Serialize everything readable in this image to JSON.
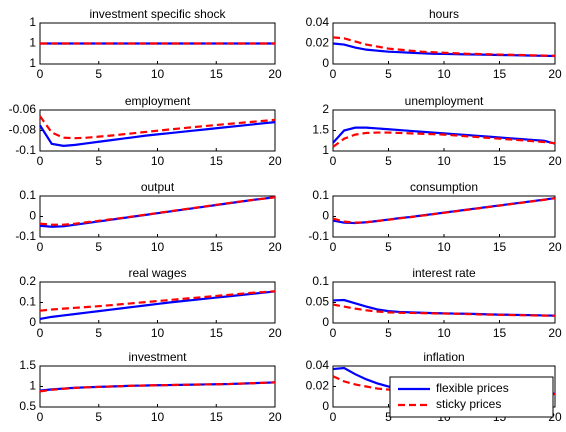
{
  "chart_data": [
    {
      "type": "line",
      "title": "investment specific shock",
      "x": [
        0,
        1,
        2,
        3,
        4,
        5,
        6,
        7,
        8,
        9,
        10,
        11,
        12,
        13,
        14,
        15,
        16,
        17,
        18,
        19,
        20
      ],
      "xlim": [
        0,
        20
      ],
      "xticks": [
        0,
        5,
        10,
        15,
        20
      ],
      "ylim": [
        0.9999,
        1.0001
      ],
      "yticks": [
        {
          "value": 0.9999,
          "label": "1"
        },
        1,
        {
          "value": 1.0001,
          "label": "1"
        }
      ],
      "series": [
        {
          "color": "#0000ff",
          "linestyle": "solid",
          "values": [
            1,
            1,
            1,
            1,
            1,
            1,
            1,
            1,
            1,
            1,
            1,
            1,
            1,
            1,
            1,
            1,
            1,
            1,
            1,
            1,
            1
          ]
        },
        {
          "color": "#ff0000",
          "linestyle": "dashed",
          "values": [
            1,
            1,
            1,
            1,
            1,
            1,
            1,
            1,
            1,
            1,
            1,
            1,
            1,
            1,
            1,
            1,
            1,
            1,
            1,
            1,
            1
          ]
        }
      ]
    },
    {
      "type": "line",
      "title": "hours",
      "x": [
        0,
        1,
        2,
        3,
        4,
        5,
        6,
        7,
        8,
        9,
        10,
        11,
        12,
        13,
        14,
        15,
        16,
        17,
        18,
        19,
        20
      ],
      "xlim": [
        0,
        20
      ],
      "xticks": [
        0,
        5,
        10,
        15,
        20
      ],
      "ylim": [
        0,
        0.04
      ],
      "yticks": [
        0,
        0.02,
        0.04
      ],
      "series": [
        {
          "color": "#0000ff",
          "linestyle": "solid",
          "values": [
            0.02,
            0.019,
            0.016,
            0.014,
            0.013,
            0.012,
            0.0115,
            0.011,
            0.0105,
            0.01,
            0.0098,
            0.0096,
            0.0094,
            0.0092,
            0.009,
            0.0088,
            0.0086,
            0.0084,
            0.0082,
            0.008,
            0.0078
          ]
        },
        {
          "color": "#ff0000",
          "linestyle": "dashed",
          "values": [
            0.026,
            0.025,
            0.022,
            0.019,
            0.017,
            0.015,
            0.014,
            0.013,
            0.012,
            0.0115,
            0.011,
            0.0105,
            0.01,
            0.0098,
            0.0095,
            0.0092,
            0.009,
            0.0088,
            0.0085,
            0.0082,
            0.008
          ]
        }
      ]
    },
    {
      "type": "line",
      "title": "employment",
      "x": [
        0,
        1,
        2,
        3,
        4,
        5,
        6,
        7,
        8,
        9,
        10,
        11,
        12,
        13,
        14,
        15,
        16,
        17,
        18,
        19,
        20
      ],
      "xlim": [
        0,
        20
      ],
      "xticks": [
        0,
        5,
        10,
        15,
        20
      ],
      "ylim": [
        -0.1,
        -0.06
      ],
      "yticks": [
        -0.1,
        -0.08,
        -0.06
      ],
      "series": [
        {
          "color": "#0000ff",
          "linestyle": "solid",
          "values": [
            -0.075,
            -0.093,
            -0.095,
            -0.094,
            -0.0925,
            -0.091,
            -0.0895,
            -0.088,
            -0.0865,
            -0.085,
            -0.0838,
            -0.0826,
            -0.0814,
            -0.0802,
            -0.079,
            -0.0778,
            -0.0766,
            -0.0754,
            -0.0742,
            -0.073,
            -0.0718
          ]
        },
        {
          "color": "#ff0000",
          "linestyle": "dashed",
          "values": [
            -0.066,
            -0.082,
            -0.087,
            -0.0875,
            -0.087,
            -0.086,
            -0.085,
            -0.0838,
            -0.0826,
            -0.0814,
            -0.0802,
            -0.079,
            -0.0779,
            -0.0768,
            -0.0757,
            -0.0746,
            -0.0736,
            -0.0726,
            -0.0716,
            -0.0706,
            -0.0696
          ]
        }
      ]
    },
    {
      "type": "line",
      "title": "unemployment",
      "x": [
        0,
        1,
        2,
        3,
        4,
        5,
        6,
        7,
        8,
        9,
        10,
        11,
        12,
        13,
        14,
        15,
        16,
        17,
        18,
        19,
        20
      ],
      "xlim": [
        0,
        20
      ],
      "xticks": [
        0,
        5,
        10,
        15,
        20
      ],
      "ylim": [
        1,
        2
      ],
      "yticks": [
        1,
        1.5,
        2
      ],
      "series": [
        {
          "color": "#0000ff",
          "linestyle": "solid",
          "values": [
            1.2,
            1.5,
            1.57,
            1.57,
            1.55,
            1.53,
            1.51,
            1.49,
            1.47,
            1.45,
            1.43,
            1.41,
            1.39,
            1.37,
            1.35,
            1.33,
            1.31,
            1.29,
            1.27,
            1.25,
            1.18
          ]
        },
        {
          "color": "#ff0000",
          "linestyle": "dashed",
          "values": [
            1.1,
            1.3,
            1.4,
            1.44,
            1.45,
            1.45,
            1.44,
            1.43,
            1.42,
            1.41,
            1.4,
            1.38,
            1.36,
            1.34,
            1.32,
            1.3,
            1.28,
            1.26,
            1.24,
            1.22,
            1.19
          ]
        }
      ]
    },
    {
      "type": "line",
      "title": "output",
      "x": [
        0,
        1,
        2,
        3,
        4,
        5,
        6,
        7,
        8,
        9,
        10,
        11,
        12,
        13,
        14,
        15,
        16,
        17,
        18,
        19,
        20
      ],
      "xlim": [
        0,
        20
      ],
      "xticks": [
        0,
        5,
        10,
        15,
        20
      ],
      "ylim": [
        -0.1,
        0.1
      ],
      "yticks": [
        -0.1,
        0,
        0.1
      ],
      "series": [
        {
          "color": "#0000ff",
          "linestyle": "solid",
          "values": [
            -0.045,
            -0.05,
            -0.048,
            -0.04,
            -0.032,
            -0.024,
            -0.016,
            -0.008,
            0,
            0.008,
            0.016,
            0.024,
            0.032,
            0.04,
            0.048,
            0.056,
            0.064,
            0.072,
            0.08,
            0.087,
            0.094
          ]
        },
        {
          "color": "#ff0000",
          "linestyle": "dashed",
          "values": [
            -0.035,
            -0.04,
            -0.04,
            -0.035,
            -0.028,
            -0.021,
            -0.014,
            -0.007,
            0.001,
            0.009,
            0.017,
            0.025,
            0.033,
            0.041,
            0.049,
            0.057,
            0.065,
            0.073,
            0.08,
            0.087,
            0.094
          ]
        }
      ]
    },
    {
      "type": "line",
      "title": "consumption",
      "x": [
        0,
        1,
        2,
        3,
        4,
        5,
        6,
        7,
        8,
        9,
        10,
        11,
        12,
        13,
        14,
        15,
        16,
        17,
        18,
        19,
        20
      ],
      "xlim": [
        0,
        20
      ],
      "xticks": [
        0,
        5,
        10,
        15,
        20
      ],
      "ylim": [
        -0.1,
        0.1
      ],
      "yticks": [
        -0.1,
        0,
        0.1
      ],
      "series": [
        {
          "color": "#0000ff",
          "linestyle": "solid",
          "values": [
            -0.02,
            -0.03,
            -0.032,
            -0.028,
            -0.022,
            -0.015,
            -0.008,
            -0.002,
            0.005,
            0.012,
            0.019,
            0.026,
            0.033,
            0.04,
            0.047,
            0.054,
            0.061,
            0.068,
            0.075,
            0.082,
            0.09
          ]
        },
        {
          "color": "#ff0000",
          "linestyle": "dashed",
          "values": [
            -0.01,
            -0.025,
            -0.03,
            -0.028,
            -0.022,
            -0.016,
            -0.009,
            -0.003,
            0.004,
            0.011,
            0.018,
            0.025,
            0.032,
            0.039,
            0.046,
            0.053,
            0.06,
            0.067,
            0.074,
            0.081,
            0.089
          ]
        }
      ]
    },
    {
      "type": "line",
      "title": "real wages",
      "x": [
        0,
        1,
        2,
        3,
        4,
        5,
        6,
        7,
        8,
        9,
        10,
        11,
        12,
        13,
        14,
        15,
        16,
        17,
        18,
        19,
        20
      ],
      "xlim": [
        0,
        20
      ],
      "xticks": [
        0,
        5,
        10,
        15,
        20
      ],
      "ylim": [
        0,
        0.2
      ],
      "yticks": [
        0,
        0.1,
        0.2
      ],
      "series": [
        {
          "color": "#0000ff",
          "linestyle": "solid",
          "values": [
            0.02,
            0.03,
            0.037,
            0.044,
            0.051,
            0.058,
            0.065,
            0.072,
            0.079,
            0.086,
            0.093,
            0.1,
            0.106,
            0.112,
            0.118,
            0.124,
            0.13,
            0.136,
            0.142,
            0.148,
            0.154
          ]
        },
        {
          "color": "#ff0000",
          "linestyle": "dashed",
          "values": [
            0.06,
            0.066,
            0.07,
            0.074,
            0.078,
            0.082,
            0.087,
            0.092,
            0.097,
            0.102,
            0.107,
            0.112,
            0.117,
            0.122,
            0.127,
            0.132,
            0.137,
            0.142,
            0.147,
            0.151,
            0.155
          ]
        }
      ]
    },
    {
      "type": "line",
      "title": "interest rate",
      "x": [
        0,
        1,
        2,
        3,
        4,
        5,
        6,
        7,
        8,
        9,
        10,
        11,
        12,
        13,
        14,
        15,
        16,
        17,
        18,
        19,
        20
      ],
      "xlim": [
        0,
        20
      ],
      "xticks": [
        0,
        5,
        10,
        15,
        20
      ],
      "ylim": [
        0,
        0.1
      ],
      "yticks": [
        0,
        0.05,
        0.1
      ],
      "series": [
        {
          "color": "#0000ff",
          "linestyle": "solid",
          "values": [
            0.055,
            0.056,
            0.048,
            0.04,
            0.033,
            0.029,
            0.027,
            0.026,
            0.025,
            0.024,
            0.0235,
            0.023,
            0.0225,
            0.022,
            0.021,
            0.0205,
            0.02,
            0.0195,
            0.019,
            0.0185,
            0.018
          ]
        },
        {
          "color": "#ff0000",
          "linestyle": "dashed",
          "values": [
            0.045,
            0.04,
            0.035,
            0.031,
            0.028,
            0.026,
            0.025,
            0.0245,
            0.024,
            0.0235,
            0.023,
            0.0225,
            0.022,
            0.021,
            0.0205,
            0.02,
            0.0195,
            0.019,
            0.0185,
            0.018,
            0.0175
          ]
        }
      ]
    },
    {
      "type": "line",
      "title": "investment",
      "x": [
        0,
        1,
        2,
        3,
        4,
        5,
        6,
        7,
        8,
        9,
        10,
        11,
        12,
        13,
        14,
        15,
        16,
        17,
        18,
        19,
        20
      ],
      "xlim": [
        0,
        20
      ],
      "xticks": [
        0,
        5,
        10,
        15,
        20
      ],
      "ylim": [
        0.5,
        1.5
      ],
      "yticks": [
        0.5,
        1,
        1.5
      ],
      "series": [
        {
          "color": "#0000ff",
          "linestyle": "solid",
          "values": [
            0.9,
            0.93,
            0.95,
            0.97,
            0.98,
            0.99,
            1.0,
            1.01,
            1.02,
            1.025,
            1.03,
            1.035,
            1.04,
            1.045,
            1.05,
            1.055,
            1.06,
            1.07,
            1.08,
            1.09,
            1.1
          ]
        },
        {
          "color": "#ff0000",
          "linestyle": "dashed",
          "values": [
            0.88,
            0.92,
            0.945,
            0.965,
            0.98,
            0.99,
            1.0,
            1.01,
            1.02,
            1.025,
            1.03,
            1.035,
            1.04,
            1.045,
            1.05,
            1.055,
            1.06,
            1.07,
            1.08,
            1.09,
            1.1
          ]
        }
      ]
    },
    {
      "type": "line",
      "title": "inflation",
      "x": [
        0,
        1,
        2,
        3,
        4,
        5,
        6,
        7,
        8,
        9,
        10,
        11,
        12,
        13,
        14,
        15,
        16,
        17,
        18,
        19,
        20
      ],
      "xlim": [
        0,
        20
      ],
      "xticks": [
        0,
        5,
        10,
        15,
        20
      ],
      "ylim": [
        0,
        0.04
      ],
      "yticks": [
        0,
        0.02,
        0.04
      ],
      "legend": "lower right",
      "series": [
        {
          "name": "flexible prices",
          "color": "#0000ff",
          "linestyle": "solid",
          "values": [
            0.037,
            0.038,
            0.032,
            0.027,
            0.023,
            0.02,
            0.018,
            0.017,
            0.016,
            0.0155,
            0.015,
            0.0148,
            0.0146,
            0.0144,
            0.0142,
            0.014,
            0.0138,
            0.0136,
            0.0134,
            0.0132,
            0.013
          ]
        },
        {
          "name": "sticky prices",
          "color": "#ff0000",
          "linestyle": "dashed",
          "values": [
            0.03,
            0.025,
            0.022,
            0.02,
            0.018,
            0.017,
            0.016,
            0.0155,
            0.015,
            0.0148,
            0.0146,
            0.0144,
            0.0142,
            0.014,
            0.0138,
            0.0136,
            0.0134,
            0.0132,
            0.013,
            0.0128,
            0.0126
          ]
        }
      ]
    }
  ]
}
